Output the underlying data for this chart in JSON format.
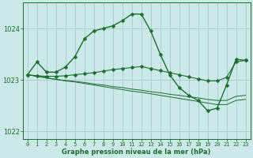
{
  "xlabel": "Graphe pression niveau de la mer (hPa)",
  "x_ticks": [
    0,
    1,
    2,
    3,
    4,
    5,
    6,
    7,
    8,
    9,
    10,
    11,
    12,
    13,
    14,
    15,
    16,
    17,
    18,
    19,
    20,
    21,
    22,
    23
  ],
  "ylim": [
    1021.85,
    1024.5
  ],
  "yticks": [
    1022,
    1023,
    1024
  ],
  "background_color": "#cde8e8",
  "grid_color": "#aacfcf",
  "line_color": "#1a6e2e",
  "series": [
    [
      1023.1,
      1023.35,
      1023.15,
      1023.15,
      1023.25,
      1023.45,
      1023.8,
      1023.95,
      1024.0,
      1024.05,
      1024.15,
      1024.28,
      1024.28,
      1023.95,
      1023.5,
      1023.1,
      1022.85,
      1022.7,
      1022.6,
      1022.4,
      1022.45,
      1022.9,
      1023.4,
      1023.38
    ],
    [
      1023.1,
      1023.08,
      1023.07,
      1023.07,
      1023.08,
      1023.1,
      1023.12,
      1023.14,
      1023.17,
      1023.2,
      1023.22,
      1023.24,
      1023.26,
      1023.22,
      1023.18,
      1023.14,
      1023.1,
      1023.06,
      1023.02,
      1022.98,
      1022.98,
      1023.05,
      1023.35,
      1023.38
    ],
    [
      1023.1,
      1023.07,
      1023.04,
      1023.01,
      1022.98,
      1022.96,
      1022.93,
      1022.9,
      1022.87,
      1022.84,
      1022.81,
      1022.78,
      1022.76,
      1022.73,
      1022.7,
      1022.67,
      1022.64,
      1022.61,
      1022.58,
      1022.55,
      1022.52,
      1022.52,
      1022.6,
      1022.62
    ],
    [
      1023.1,
      1023.07,
      1023.04,
      1023.01,
      1022.99,
      1022.97,
      1022.95,
      1022.92,
      1022.9,
      1022.87,
      1022.85,
      1022.82,
      1022.8,
      1022.77,
      1022.75,
      1022.72,
      1022.7,
      1022.67,
      1022.65,
      1022.62,
      1022.6,
      1022.6,
      1022.68,
      1022.7
    ]
  ],
  "has_markers": [
    true,
    true,
    false,
    false
  ],
  "marker_x": [
    [
      0,
      1,
      2,
      3,
      4,
      5,
      6,
      7,
      8,
      9,
      10,
      11,
      12,
      13,
      14,
      15,
      16,
      17,
      18,
      19,
      20,
      21,
      22,
      23
    ],
    [
      0,
      1,
      2,
      3,
      4,
      5,
      6,
      7,
      8,
      9,
      10,
      11,
      12,
      13,
      14,
      15,
      16,
      17,
      18,
      19,
      20,
      21,
      22,
      23
    ]
  ]
}
